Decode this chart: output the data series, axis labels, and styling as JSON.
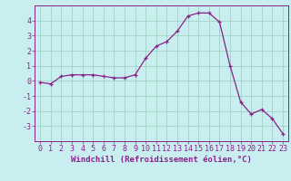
{
  "x": [
    0,
    1,
    2,
    3,
    4,
    5,
    6,
    7,
    8,
    9,
    10,
    11,
    12,
    13,
    14,
    15,
    16,
    17,
    18,
    19,
    20,
    21,
    22,
    23
  ],
  "y": [
    -0.1,
    -0.2,
    0.3,
    0.4,
    0.4,
    0.4,
    0.3,
    0.2,
    0.2,
    0.4,
    1.5,
    2.3,
    2.6,
    3.3,
    4.3,
    4.5,
    4.5,
    3.9,
    1.0,
    -1.4,
    -2.2,
    -1.9,
    -2.5,
    -3.5
  ],
  "line_color": "#882288",
  "marker": "+",
  "marker_size": 3,
  "bg_color": "#c8eef0",
  "grid_color": "#99ccbb",
  "xlabel": "Windchill (Refroidissement éolien,°C)",
  "xlabel_color": "#882288",
  "ylim": [
    -4,
    5
  ],
  "xlim": [
    -0.5,
    23.5
  ],
  "yticks": [
    -3,
    -2,
    -1,
    0,
    1,
    2,
    3,
    4
  ],
  "xticks": [
    0,
    1,
    2,
    3,
    4,
    5,
    6,
    7,
    8,
    9,
    10,
    11,
    12,
    13,
    14,
    15,
    16,
    17,
    18,
    19,
    20,
    21,
    22,
    23
  ],
  "tick_color": "#882288",
  "spine_color": "#882288",
  "axis_label_fontsize": 6.5,
  "tick_fontsize": 6.0
}
